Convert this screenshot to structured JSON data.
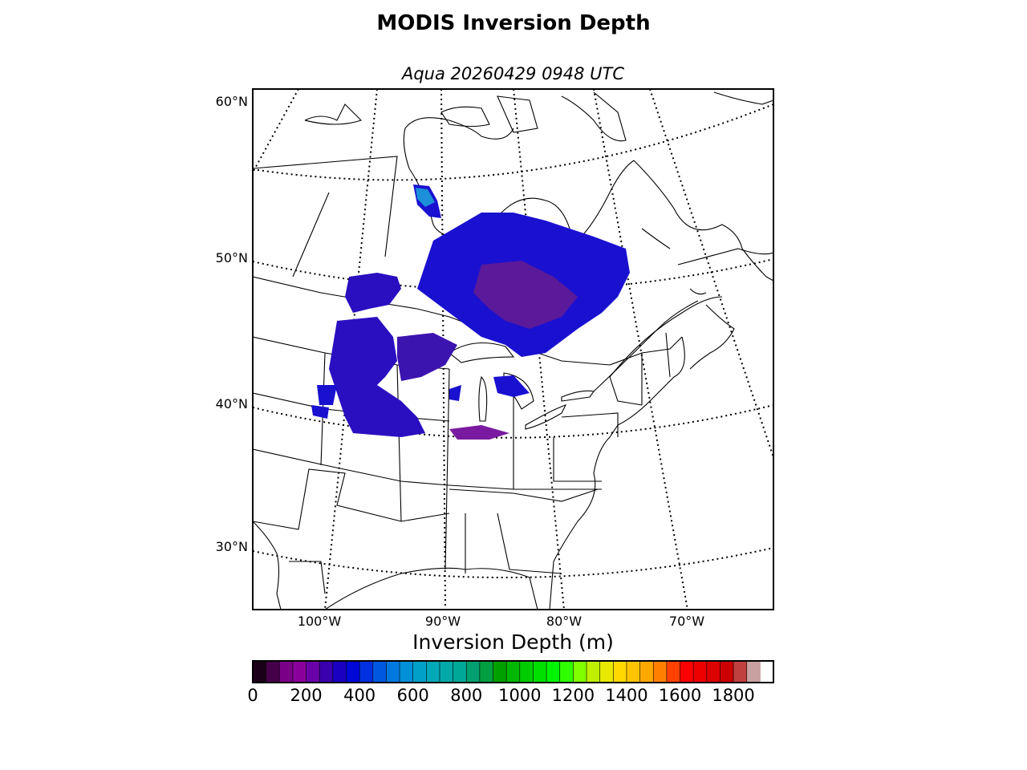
{
  "title": "MODIS Inversion Depth",
  "subtitle": "Aqua 20260429 0948 UTC",
  "map": {
    "latitude_labels": [
      "60°N",
      "50°N",
      "40°N",
      "30°N"
    ],
    "longitude_labels": [
      "100°W",
      "90°W",
      "80°W",
      "70°W"
    ],
    "graticule_style": "dotted",
    "data_field_color": "#2a0fc0",
    "coast_color": "#000000"
  },
  "colorbar": {
    "title": "Inversion Depth (m)",
    "tick_labels": [
      "0",
      "200",
      "400",
      "600",
      "800",
      "1000",
      "1200",
      "1400",
      "1600",
      "1800"
    ],
    "range": [
      0,
      1950
    ],
    "step": 50,
    "colors": [
      "#1a0018",
      "#46004a",
      "#7a0088",
      "#8a009a",
      "#6a00a8",
      "#3a00b0",
      "#1a00c0",
      "#0008d8",
      "#0030e0",
      "#0058e0",
      "#0078e0",
      "#0090d8",
      "#00a0c8",
      "#00a8b8",
      "#00a8a8",
      "#00a898",
      "#00a070",
      "#00a040",
      "#00a000",
      "#00b800",
      "#00cc00",
      "#00e000",
      "#00f400",
      "#30ff00",
      "#80ff00",
      "#c0f000",
      "#e8e800",
      "#ffd800",
      "#ffc400",
      "#ffa800",
      "#ff8000",
      "#ff4000",
      "#ff0000",
      "#ee0000",
      "#dd0000",
      "#cc0000",
      "#c04040",
      "#c8a0a0"
    ]
  }
}
